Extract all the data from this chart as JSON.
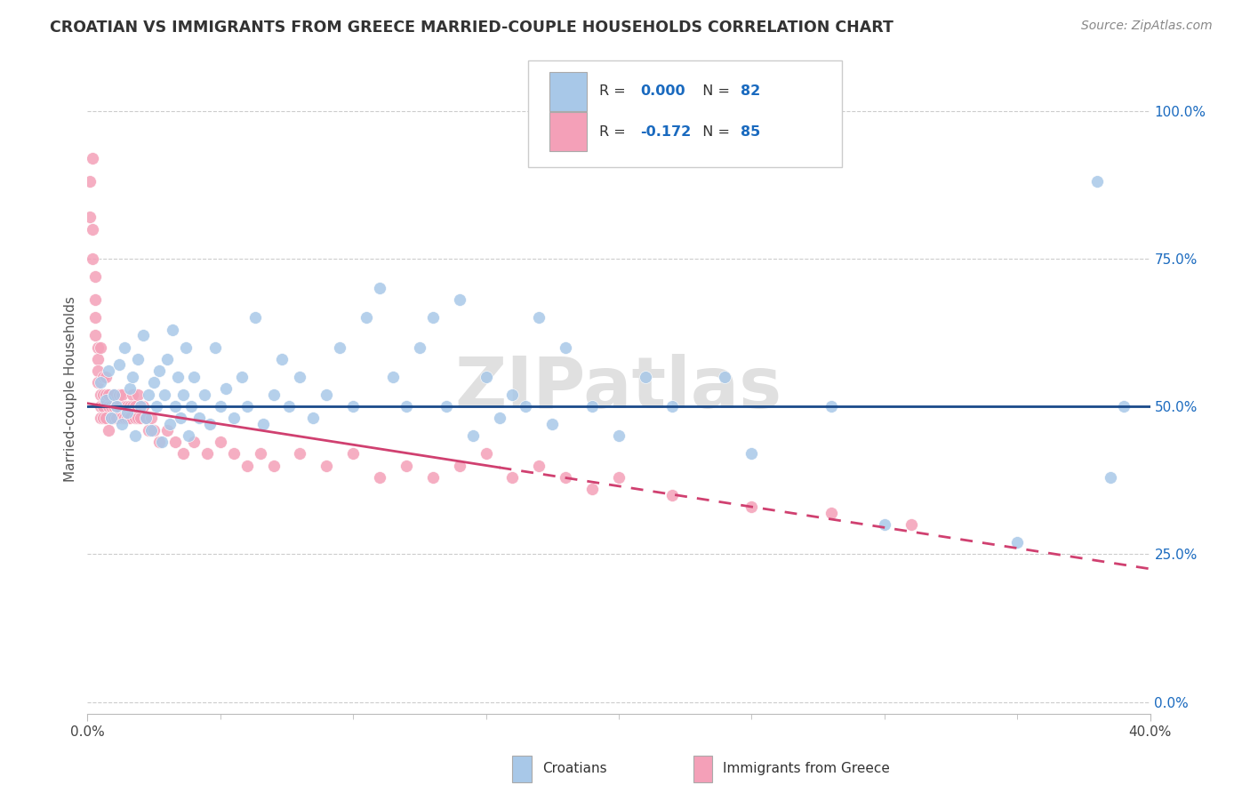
{
  "title": "CROATIAN VS IMMIGRANTS FROM GREECE MARRIED-COUPLE HOUSEHOLDS CORRELATION CHART",
  "source": "Source: ZipAtlas.com",
  "ylabel": "Married-couple Households",
  "yticks": [
    "0.0%",
    "25.0%",
    "50.0%",
    "75.0%",
    "100.0%"
  ],
  "ytick_vals": [
    0.0,
    0.25,
    0.5,
    0.75,
    1.0
  ],
  "xmin": 0.0,
  "xmax": 0.4,
  "ymin": -0.02,
  "ymax": 1.08,
  "legend_labels": [
    "Croatians",
    "Immigrants from Greece"
  ],
  "croatian_R": "0.000",
  "croatian_N": "82",
  "greece_R": "-0.172",
  "greece_N": "85",
  "blue_color": "#a8c8e8",
  "pink_color": "#f4a0b8",
  "blue_line_color": "#1a4a8a",
  "pink_line_color": "#d04070",
  "blue_text_color": "#1a6abf",
  "watermark": "ZIPatlas",
  "background_color": "#ffffff",
  "grid_color": "#cccccc",
  "croatian_x": [
    0.005,
    0.007,
    0.008,
    0.009,
    0.01,
    0.011,
    0.012,
    0.013,
    0.014,
    0.015,
    0.016,
    0.017,
    0.018,
    0.019,
    0.02,
    0.021,
    0.022,
    0.023,
    0.024,
    0.025,
    0.026,
    0.027,
    0.028,
    0.029,
    0.03,
    0.031,
    0.032,
    0.033,
    0.034,
    0.035,
    0.036,
    0.037,
    0.038,
    0.039,
    0.04,
    0.042,
    0.044,
    0.046,
    0.048,
    0.05,
    0.052,
    0.055,
    0.058,
    0.06,
    0.063,
    0.066,
    0.07,
    0.073,
    0.076,
    0.08,
    0.085,
    0.09,
    0.095,
    0.1,
    0.105,
    0.11,
    0.115,
    0.12,
    0.125,
    0.13,
    0.135,
    0.14,
    0.145,
    0.15,
    0.155,
    0.16,
    0.165,
    0.17,
    0.175,
    0.18,
    0.19,
    0.2,
    0.21,
    0.22,
    0.24,
    0.25,
    0.28,
    0.3,
    0.35,
    0.38,
    0.385,
    0.39
  ],
  "croatian_y": [
    0.54,
    0.51,
    0.56,
    0.48,
    0.52,
    0.5,
    0.57,
    0.47,
    0.6,
    0.49,
    0.53,
    0.55,
    0.45,
    0.58,
    0.5,
    0.62,
    0.48,
    0.52,
    0.46,
    0.54,
    0.5,
    0.56,
    0.44,
    0.52,
    0.58,
    0.47,
    0.63,
    0.5,
    0.55,
    0.48,
    0.52,
    0.6,
    0.45,
    0.5,
    0.55,
    0.48,
    0.52,
    0.47,
    0.6,
    0.5,
    0.53,
    0.48,
    0.55,
    0.5,
    0.65,
    0.47,
    0.52,
    0.58,
    0.5,
    0.55,
    0.48,
    0.52,
    0.6,
    0.5,
    0.65,
    0.7,
    0.55,
    0.5,
    0.6,
    0.65,
    0.5,
    0.68,
    0.45,
    0.55,
    0.48,
    0.52,
    0.5,
    0.65,
    0.47,
    0.6,
    0.5,
    0.45,
    0.55,
    0.5,
    0.55,
    0.42,
    0.5,
    0.3,
    0.27,
    0.88,
    0.38,
    0.5
  ],
  "greece_x": [
    0.001,
    0.001,
    0.002,
    0.002,
    0.002,
    0.003,
    0.003,
    0.003,
    0.003,
    0.004,
    0.004,
    0.004,
    0.004,
    0.005,
    0.005,
    0.005,
    0.005,
    0.006,
    0.006,
    0.006,
    0.006,
    0.007,
    0.007,
    0.007,
    0.008,
    0.008,
    0.008,
    0.009,
    0.009,
    0.01,
    0.01,
    0.01,
    0.011,
    0.011,
    0.012,
    0.012,
    0.013,
    0.013,
    0.014,
    0.014,
    0.015,
    0.015,
    0.016,
    0.016,
    0.017,
    0.017,
    0.018,
    0.018,
    0.019,
    0.019,
    0.02,
    0.02,
    0.021,
    0.022,
    0.023,
    0.024,
    0.025,
    0.027,
    0.03,
    0.033,
    0.036,
    0.04,
    0.045,
    0.05,
    0.055,
    0.06,
    0.065,
    0.07,
    0.08,
    0.09,
    0.1,
    0.11,
    0.12,
    0.13,
    0.14,
    0.15,
    0.16,
    0.17,
    0.18,
    0.19,
    0.2,
    0.22,
    0.25,
    0.28,
    0.31
  ],
  "greece_y": [
    0.88,
    0.82,
    0.8,
    0.75,
    0.92,
    0.72,
    0.68,
    0.65,
    0.62,
    0.6,
    0.58,
    0.56,
    0.54,
    0.52,
    0.5,
    0.48,
    0.6,
    0.55,
    0.52,
    0.5,
    0.48,
    0.55,
    0.52,
    0.48,
    0.52,
    0.5,
    0.46,
    0.5,
    0.48,
    0.52,
    0.5,
    0.48,
    0.5,
    0.48,
    0.52,
    0.5,
    0.48,
    0.52,
    0.5,
    0.48,
    0.5,
    0.48,
    0.5,
    0.48,
    0.52,
    0.5,
    0.48,
    0.5,
    0.48,
    0.52,
    0.5,
    0.48,
    0.5,
    0.48,
    0.46,
    0.48,
    0.46,
    0.44,
    0.46,
    0.44,
    0.42,
    0.44,
    0.42,
    0.44,
    0.42,
    0.4,
    0.42,
    0.4,
    0.42,
    0.4,
    0.42,
    0.38,
    0.4,
    0.38,
    0.4,
    0.42,
    0.38,
    0.4,
    0.38,
    0.36,
    0.38,
    0.35,
    0.33,
    0.32,
    0.3
  ]
}
